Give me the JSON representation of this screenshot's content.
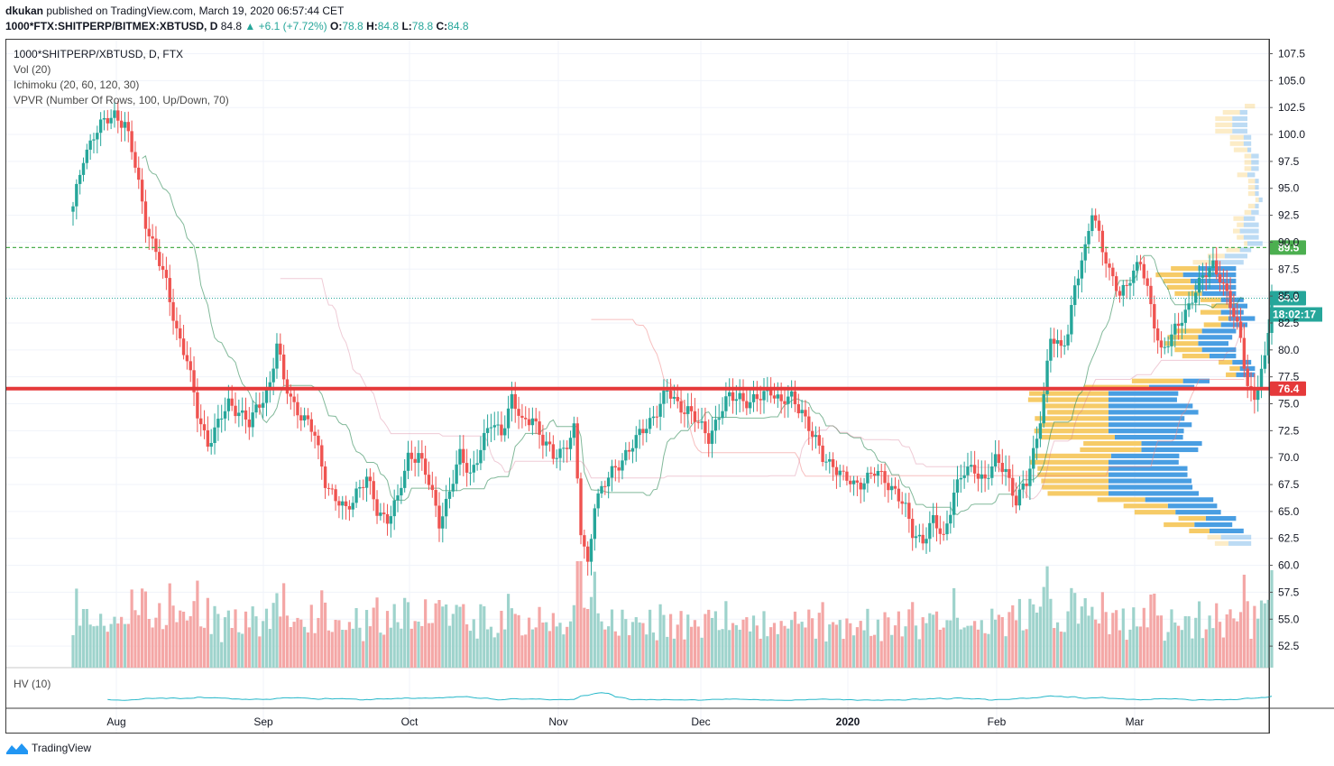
{
  "header": {
    "author": "dkukan",
    "published_text": "published on TradingView.com, March 19, 2020 06:57:44 CET",
    "symbol": "1000*FTX:SHITPERP/BITMEX:XBTUSD, D",
    "last": "84.8",
    "change": "▲ +6.1 (+7.72%)",
    "o_label": "O:",
    "o_val": "78.8",
    "h_label": "H:",
    "h_val": "84.8",
    "l_label": "L:",
    "l_val": "78.8",
    "c_label": "C:",
    "c_val": "84.8"
  },
  "legend": {
    "title": "1000*SHITPERP/XBTUSD, D, FTX",
    "vol": "Vol (20)",
    "ichimoku": "Ichimoku (20, 60, 120, 30)",
    "vpvr": "VPVR (Number Of Rows, 100, Up/Down, 70)",
    "hv": "HV (10)"
  },
  "branding": {
    "name": "TradingView"
  },
  "colors": {
    "up": "#26a69a",
    "down": "#ef5350",
    "up_vol": "#9ed3cc",
    "down_vol": "#f4a7a6",
    "support_line": "#e5393a",
    "green_dashed": "#4caf50",
    "last_price_line": "#26a69a",
    "vp_up": "#f6c85f",
    "vp_down": "#3f99e0",
    "hv_line": "#26b7c9"
  },
  "chart_data": {
    "type": "candlestick",
    "interval": "D",
    "x_labels": [
      "Aug",
      "Sep",
      "Oct",
      "Nov",
      "Dec",
      "2020",
      "Feb",
      "Mar"
    ],
    "y_ticks": [
      "52.5",
      "55.0",
      "57.5",
      "60.0",
      "62.5",
      "65.0",
      "67.5",
      "70.0",
      "72.5",
      "75.0",
      "77.5",
      "80.0",
      "82.5",
      "85.0",
      "87.5",
      "90.0",
      "92.5",
      "95.0",
      "97.5",
      "100.0",
      "102.5",
      "105.0",
      "107.5"
    ],
    "ylim": [
      50.5,
      108.8
    ],
    "price_path": [
      [
        0,
        93
      ],
      [
        3,
        98
      ],
      [
        6,
        100
      ],
      [
        9,
        101
      ],
      [
        12,
        102
      ],
      [
        15,
        101
      ],
      [
        18,
        97
      ],
      [
        21,
        92
      ],
      [
        24,
        89
      ],
      [
        27,
        86
      ],
      [
        30,
        82
      ],
      [
        33,
        79
      ],
      [
        36,
        74
      ],
      [
        39,
        71.5
      ],
      [
        42,
        73
      ],
      [
        45,
        75
      ],
      [
        48,
        74.5
      ],
      [
        51,
        73
      ],
      [
        54,
        75
      ],
      [
        57,
        77
      ],
      [
        59,
        80.5
      ],
      [
        61,
        77
      ],
      [
        64,
        75
      ],
      [
        67,
        73.5
      ],
      [
        70,
        72
      ],
      [
        73,
        68
      ],
      [
        76,
        66
      ],
      [
        79,
        65
      ],
      [
        82,
        67
      ],
      [
        85,
        68
      ],
      [
        88,
        65
      ],
      [
        91,
        64.5
      ],
      [
        94,
        66
      ],
      [
        97,
        70
      ],
      [
        100,
        70.5
      ],
      [
        103,
        67.5
      ],
      [
        106,
        64
      ],
      [
        109,
        67
      ],
      [
        112,
        70
      ],
      [
        115,
        68.5
      ],
      [
        118,
        71
      ],
      [
        121,
        73
      ],
      [
        124,
        72.5
      ],
      [
        127,
        75.5
      ],
      [
        130,
        73
      ],
      [
        133,
        74
      ],
      [
        136,
        71.5
      ],
      [
        139,
        70
      ],
      [
        142,
        71
      ],
      [
        145,
        72.5
      ],
      [
        147,
        63
      ],
      [
        149,
        60
      ],
      [
        151,
        66
      ],
      [
        154,
        67.5
      ],
      [
        157,
        69
      ],
      [
        160,
        70.5
      ],
      [
        163,
        71.5
      ],
      [
        166,
        73
      ],
      [
        169,
        74.5
      ],
      [
        172,
        76
      ],
      [
        175,
        75
      ],
      [
        178,
        74.5
      ],
      [
        181,
        73
      ],
      [
        184,
        72
      ],
      [
        187,
        74
      ],
      [
        190,
        75.5
      ],
      [
        193,
        75.8
      ],
      [
        196,
        75
      ],
      [
        199,
        75.5
      ],
      [
        202,
        76.5
      ],
      [
        205,
        75
      ],
      [
        208,
        75.5
      ],
      [
        211,
        74.5
      ],
      [
        214,
        72
      ],
      [
        217,
        70
      ],
      [
        220,
        69.5
      ],
      [
        223,
        68
      ],
      [
        226,
        67.5
      ],
      [
        229,
        68
      ],
      [
        232,
        68.5
      ],
      [
        235,
        68
      ],
      [
        238,
        67
      ],
      [
        241,
        65
      ],
      [
        243,
        63
      ],
      [
        246,
        62.5
      ],
      [
        249,
        64
      ],
      [
        252,
        62.5
      ],
      [
        255,
        67
      ],
      [
        258,
        68.5
      ],
      [
        261,
        69
      ],
      [
        264,
        68
      ],
      [
        267,
        69.5
      ],
      [
        270,
        69
      ],
      [
        273,
        66
      ],
      [
        276,
        67.5
      ],
      [
        279,
        72
      ],
      [
        281,
        76
      ],
      [
        283,
        81
      ],
      [
        286,
        80
      ],
      [
        288,
        82
      ],
      [
        290,
        86
      ],
      [
        293,
        89
      ],
      [
        295,
        93
      ],
      [
        297,
        91
      ],
      [
        300,
        87
      ],
      [
        303,
        85
      ],
      [
        306,
        87
      ],
      [
        309,
        88
      ],
      [
        312,
        84
      ],
      [
        315,
        80
      ],
      [
        318,
        81
      ],
      [
        321,
        83
      ],
      [
        324,
        85
      ],
      [
        327,
        86.5
      ],
      [
        330,
        88
      ],
      [
        332,
        87
      ],
      [
        335,
        84
      ],
      [
        338,
        81
      ],
      [
        340,
        77
      ],
      [
        342,
        75.5
      ],
      [
        345,
        78.8
      ],
      [
        347,
        84.8
      ]
    ],
    "last_price": 84.8,
    "countdown": "18:02:17",
    "levels": [
      {
        "price": 89.5,
        "label": "89.5",
        "style": "dashed-green"
      },
      {
        "price": 84.8,
        "label": "84.8",
        "style": "dotted-last"
      },
      {
        "price": 76.4,
        "label": "76.4",
        "style": "thick-red"
      }
    ]
  }
}
